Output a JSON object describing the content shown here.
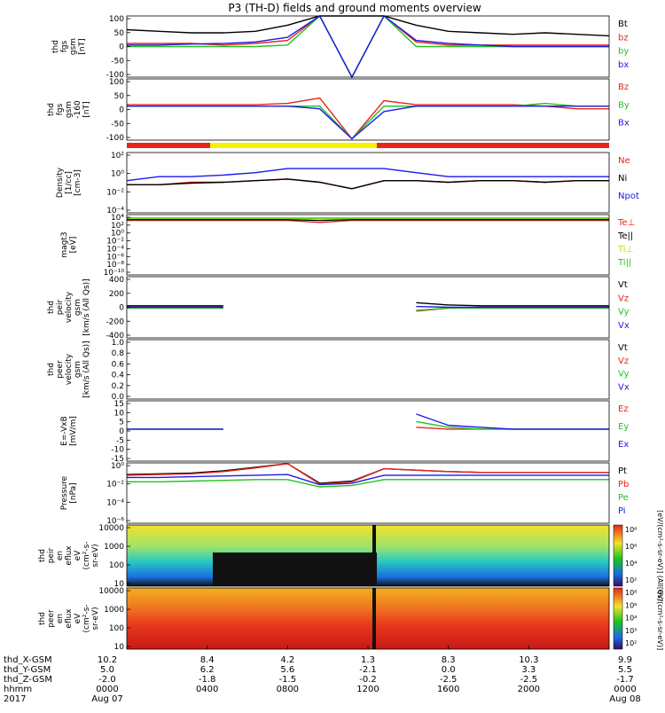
{
  "title": "P3 (TH-D) fields and ground moments overview",
  "colors": {
    "black": "#000000",
    "red": "#e8241c",
    "green": "#1fc41f",
    "blue": "#1a1ae8",
    "yellow": "#f3f300"
  },
  "chart_data": [
    {
      "type": "line",
      "id": "fgs-bt",
      "ylabel": [
        "thd",
        "fgs",
        "gsm",
        "[nT]"
      ],
      "yticks": [
        "100",
        "50",
        "0",
        "-50",
        "-100"
      ],
      "ylim": [
        -100,
        100
      ],
      "series": [
        {
          "name": "Bt",
          "color": "#000000",
          "values": [
            55,
            50,
            45,
            45,
            50,
            70,
            100,
            100,
            100,
            70,
            50,
            45,
            40,
            45,
            40,
            35
          ]
        },
        {
          "name": "bz",
          "color": "#e8241c",
          "values": [
            10,
            10,
            10,
            5,
            10,
            20,
            100,
            -100,
            100,
            15,
            5,
            5,
            5,
            5,
            5,
            5
          ]
        },
        {
          "name": "by",
          "color": "#1fc41f",
          "values": [
            0,
            0,
            0,
            0,
            0,
            5,
            100,
            -100,
            100,
            0,
            0,
            0,
            0,
            0,
            0,
            0
          ]
        },
        {
          "name": "bx",
          "color": "#1a1ae8",
          "values": [
            5,
            5,
            8,
            10,
            15,
            30,
            100,
            -100,
            100,
            20,
            10,
            5,
            0,
            0,
            0,
            0
          ]
        }
      ]
    },
    {
      "type": "line",
      "id": "fgs-b",
      "ylabel": [
        "thd",
        "fgs",
        "gsm",
        "-160",
        "[nT]"
      ],
      "yticks": [
        "100",
        "50",
        "0",
        "-50",
        "-100"
      ],
      "ylim": [
        -125,
        100
      ],
      "series": [
        {
          "name": "Bz",
          "color": "#e8241c",
          "values": [
            5,
            5,
            5,
            5,
            5,
            10,
            30,
            -120,
            20,
            5,
            5,
            5,
            5,
            0,
            -10,
            -10
          ]
        },
        {
          "name": "By",
          "color": "#1fc41f",
          "values": [
            0,
            0,
            0,
            0,
            0,
            0,
            0,
            -120,
            0,
            0,
            0,
            0,
            0,
            10,
            0,
            0
          ]
        },
        {
          "name": "Bx",
          "color": "#1a1ae8",
          "values": [
            0,
            0,
            0,
            0,
            0,
            0,
            -10,
            -120,
            -20,
            0,
            0,
            0,
            0,
            0,
            0,
            0
          ]
        }
      ]
    },
    {
      "type": "line",
      "id": "density",
      "ylabel": [
        "Density",
        "[1/cc]",
        "[cm-3]"
      ],
      "yticks": [
        "10²",
        "10⁰",
        "10⁻²",
        "10⁻⁴"
      ],
      "ylim": [
        -5,
        2.5
      ],
      "scale": "log",
      "series": [
        {
          "name": "Ne",
          "color": "#e8241c",
          "values": [
            -1.5,
            -1.5,
            -1.2,
            -1.2,
            -1.0,
            -0.8,
            -1.2,
            -2.0,
            -1.0,
            -1.0,
            -1.2,
            -1.0,
            -1.0,
            -1.2,
            -1.0,
            -1.0
          ]
        },
        {
          "name": "Ni",
          "color": "#000000",
          "values": [
            -1.5,
            -1.5,
            -1.3,
            -1.2,
            -1.0,
            -0.8,
            -1.2,
            -2.0,
            -1.0,
            -1.0,
            -1.2,
            -1.0,
            -1.0,
            -1.2,
            -1.0,
            -1.0
          ]
        },
        {
          "name": "Npot",
          "color": "#1a1ae8",
          "values": [
            -1.0,
            -0.5,
            -0.5,
            -0.3,
            0.0,
            0.5,
            0.5,
            0.5,
            0.5,
            0.0,
            -0.5,
            -0.5,
            -0.5,
            -0.5,
            -0.5,
            -0.5
          ]
        }
      ]
    },
    {
      "type": "line",
      "id": "temperature",
      "ylabel": [
        "magt3",
        "[eV]"
      ],
      "yticks": [
        "10⁴",
        "10²",
        "10⁰",
        "10⁻²",
        "10⁻⁴",
        "10⁻⁶",
        "10⁻⁸",
        "10⁻¹⁰"
      ],
      "ylim": [
        -11,
        4.5
      ],
      "scale": "log",
      "series": [
        {
          "name": "Te⊥",
          "color": "#e8241c",
          "values": [
            3,
            3,
            3,
            3,
            3,
            3,
            2.5,
            3,
            3,
            3,
            3,
            3,
            3,
            3,
            3,
            3
          ]
        },
        {
          "name": "Te||",
          "color": "#000000",
          "values": [
            3.2,
            3.2,
            3.2,
            3.2,
            3.2,
            3.2,
            3,
            3.2,
            3.2,
            3.2,
            3.2,
            3.2,
            3.2,
            3.2,
            3.2,
            3.2
          ]
        },
        {
          "name": "Ti⊥",
          "color": "#f3f300",
          "values": [
            3.5,
            3.5,
            3.5,
            3.5,
            3.5,
            3.5,
            3.5,
            3.5,
            3.5,
            3.5,
            3.5,
            3.5,
            3.5,
            3.5,
            3.5,
            3.5
          ]
        },
        {
          "name": "Ti||",
          "color": "#1fc41f",
          "values": [
            3.6,
            3.6,
            3.6,
            3.6,
            3.6,
            3.6,
            3.6,
            3.6,
            3.6,
            3.6,
            3.6,
            3.6,
            3.6,
            3.6,
            3.6,
            3.6
          ]
        }
      ]
    },
    {
      "type": "line",
      "id": "peir-vel",
      "ylabel": [
        "thd",
        "peir",
        "velocity",
        "gsm",
        "[km/s (All Qs)]"
      ],
      "yticks": [
        "400",
        "200",
        "0",
        "-200",
        "-400"
      ],
      "ylim": [
        -400,
        400
      ],
      "series": [
        {
          "name": "Vt",
          "color": "#000000",
          "values": [
            20,
            20,
            20,
            20,
            null,
            null,
            null,
            null,
            null,
            60,
            30,
            20,
            20,
            20,
            20,
            20
          ]
        },
        {
          "name": "Vz",
          "color": "#e8241c",
          "values": [
            0,
            0,
            0,
            0,
            null,
            null,
            null,
            null,
            null,
            -50,
            -10,
            0,
            0,
            0,
            0,
            0
          ]
        },
        {
          "name": "Vy",
          "color": "#1fc41f",
          "values": [
            -10,
            -10,
            -10,
            -10,
            null,
            null,
            null,
            null,
            null,
            -40,
            -10,
            -10,
            -10,
            -10,
            -10,
            -10
          ]
        },
        {
          "name": "Vx",
          "color": "#1a1ae8",
          "values": [
            0,
            0,
            0,
            0,
            null,
            null,
            null,
            null,
            null,
            10,
            0,
            0,
            0,
            0,
            0,
            0
          ]
        }
      ]
    },
    {
      "type": "line",
      "id": "peer-vel",
      "ylabel": [
        "thd",
        "peer",
        "velocity",
        "gsm",
        "[km/s (All Qs)]"
      ],
      "yticks": [
        "1.0",
        "0.8",
        "0.6",
        "0.4",
        "0.2",
        "0.0"
      ],
      "ylim": [
        0,
        1
      ],
      "series": [
        {
          "name": "Vt",
          "color": "#000000",
          "values": []
        },
        {
          "name": "Vz",
          "color": "#e8241c",
          "values": []
        },
        {
          "name": "Vy",
          "color": "#1fc41f",
          "values": []
        },
        {
          "name": "Vx",
          "color": "#1a1ae8",
          "values": []
        }
      ]
    },
    {
      "type": "line",
      "id": "efield",
      "ylabel": [
        "E=-VxB",
        "[mV/m]"
      ],
      "yticks": [
        "15",
        "10",
        "5",
        "0",
        "-5",
        "-10",
        "-15"
      ],
      "ylim": [
        -17,
        15
      ],
      "series": [
        {
          "name": "Ez",
          "color": "#e8241c",
          "values": [
            0,
            0,
            0,
            0,
            null,
            null,
            null,
            null,
            null,
            1,
            0,
            0,
            0,
            0,
            0,
            0
          ]
        },
        {
          "name": "Ey",
          "color": "#1fc41f",
          "values": [
            0,
            0,
            0,
            0,
            null,
            null,
            null,
            null,
            null,
            4,
            1,
            0,
            0,
            0,
            0,
            0
          ]
        },
        {
          "name": "Ex",
          "color": "#1a1ae8",
          "values": [
            0,
            0,
            0,
            0,
            null,
            null,
            null,
            null,
            null,
            8,
            2,
            1,
            0,
            0,
            0,
            0
          ]
        }
      ]
    },
    {
      "type": "line",
      "id": "pressure",
      "ylabel": [
        "Pressure",
        "[nPa]"
      ],
      "yticks": [
        "10⁰",
        "10⁻²",
        "10⁻⁴",
        "10⁻⁶"
      ],
      "ylim": [
        -7,
        1.3
      ],
      "scale": "log",
      "series": [
        {
          "name": "Pt",
          "color": "#000000",
          "values": [
            -0.3,
            -0.2,
            -0.1,
            0.2,
            0.7,
            1.2,
            -1.5,
            -1.2,
            0.5,
            0.3,
            0.1,
            0.0,
            0.0,
            0.0,
            0.0,
            0.0
          ]
        },
        {
          "name": "Pb",
          "color": "#e8241c",
          "values": [
            -0.4,
            -0.3,
            -0.2,
            0.1,
            0.6,
            1.2,
            -1.6,
            -1.3,
            0.5,
            0.3,
            0.1,
            0.0,
            0.0,
            0.0,
            0.0,
            0.0
          ]
        },
        {
          "name": "Pe",
          "color": "#1fc41f",
          "values": [
            -1.3,
            -1.3,
            -1.2,
            -1.1,
            -1.0,
            -1.0,
            -2.0,
            -1.8,
            -1.0,
            -1.0,
            -1.0,
            -1.0,
            -1.0,
            -1.0,
            -1.0,
            -1.0
          ]
        },
        {
          "name": "Pi",
          "color": "#1a1ae8",
          "values": [
            -0.7,
            -0.7,
            -0.6,
            -0.5,
            -0.4,
            -0.3,
            -1.7,
            -1.5,
            -0.4,
            -0.4,
            -0.4,
            -0.4,
            -0.4,
            -0.4,
            -0.4,
            -0.4
          ]
        }
      ]
    },
    {
      "type": "heatmap",
      "id": "peir-spec",
      "ylabel": [
        "thd",
        "peir",
        "en",
        "eflux",
        "eV",
        "(cm²-s-",
        "sr-eV)"
      ],
      "yticks": [
        "10000",
        "1000",
        "100",
        "10"
      ],
      "colorbar": {
        "ticks": [
          "10⁸",
          "10⁶",
          "10⁴",
          "10²"
        ],
        "label": "[eV/(cm²-s-sr-eV)] (All Qs)"
      }
    },
    {
      "type": "heatmap",
      "id": "peer-spec",
      "ylabel": [
        "thd",
        "peer",
        "en",
        "eflux",
        "eV",
        "(cm²-s-",
        "sr-eV)"
      ],
      "yticks": [
        "10000",
        "1000",
        "100",
        "10"
      ],
      "colorbar": {
        "ticks": [
          "10⁸",
          "10⁶",
          "10⁴",
          "10³",
          "10²"
        ],
        "label": "[eV/(cm²-s-sr-eV)]"
      }
    }
  ],
  "legends": [
    [
      "Bt",
      "bz",
      "by",
      "bx"
    ],
    [
      "Bz",
      "By",
      "Bx"
    ],
    [
      "Ne",
      "Ni",
      "Npot"
    ],
    [
      "Te⊥",
      "Te||",
      "Ti⊥",
      "Ti||"
    ],
    [
      "Vt",
      "Vz",
      "Vy",
      "Vx"
    ],
    [
      "Vt",
      "Vz",
      "Vy",
      "Vx"
    ],
    [
      "Ez",
      "Ey",
      "Ex"
    ],
    [
      "Pt",
      "Pb",
      "Pe",
      "Pi"
    ]
  ],
  "footer": {
    "row_labels": [
      "thd_X-GSM",
      "thd_Y-GSM",
      "thd_Z-GSM",
      "hhmm",
      "2017"
    ],
    "columns": [
      {
        "x": "10.2",
        "y": "5.0",
        "z": "-2.0",
        "t": "0000",
        "d": "Aug 07"
      },
      {
        "x": "8.4",
        "y": "6.2",
        "z": "-1.8",
        "t": "0400",
        "d": ""
      },
      {
        "x": "4.2",
        "y": "5.6",
        "z": "-1.5",
        "t": "0800",
        "d": ""
      },
      {
        "x": "1.3",
        "y": "-2.1",
        "z": "-0.2",
        "t": "1200",
        "d": ""
      },
      {
        "x": "8.3",
        "y": "0.0",
        "z": "-2.5",
        "t": "1600",
        "d": ""
      },
      {
        "x": "10.3",
        "y": "3.3",
        "z": "-2.5",
        "t": "2000",
        "d": ""
      },
      {
        "x": "9.9",
        "y": "5.5",
        "z": "-1.7",
        "t": "0000",
        "d": "Aug 08"
      }
    ]
  }
}
